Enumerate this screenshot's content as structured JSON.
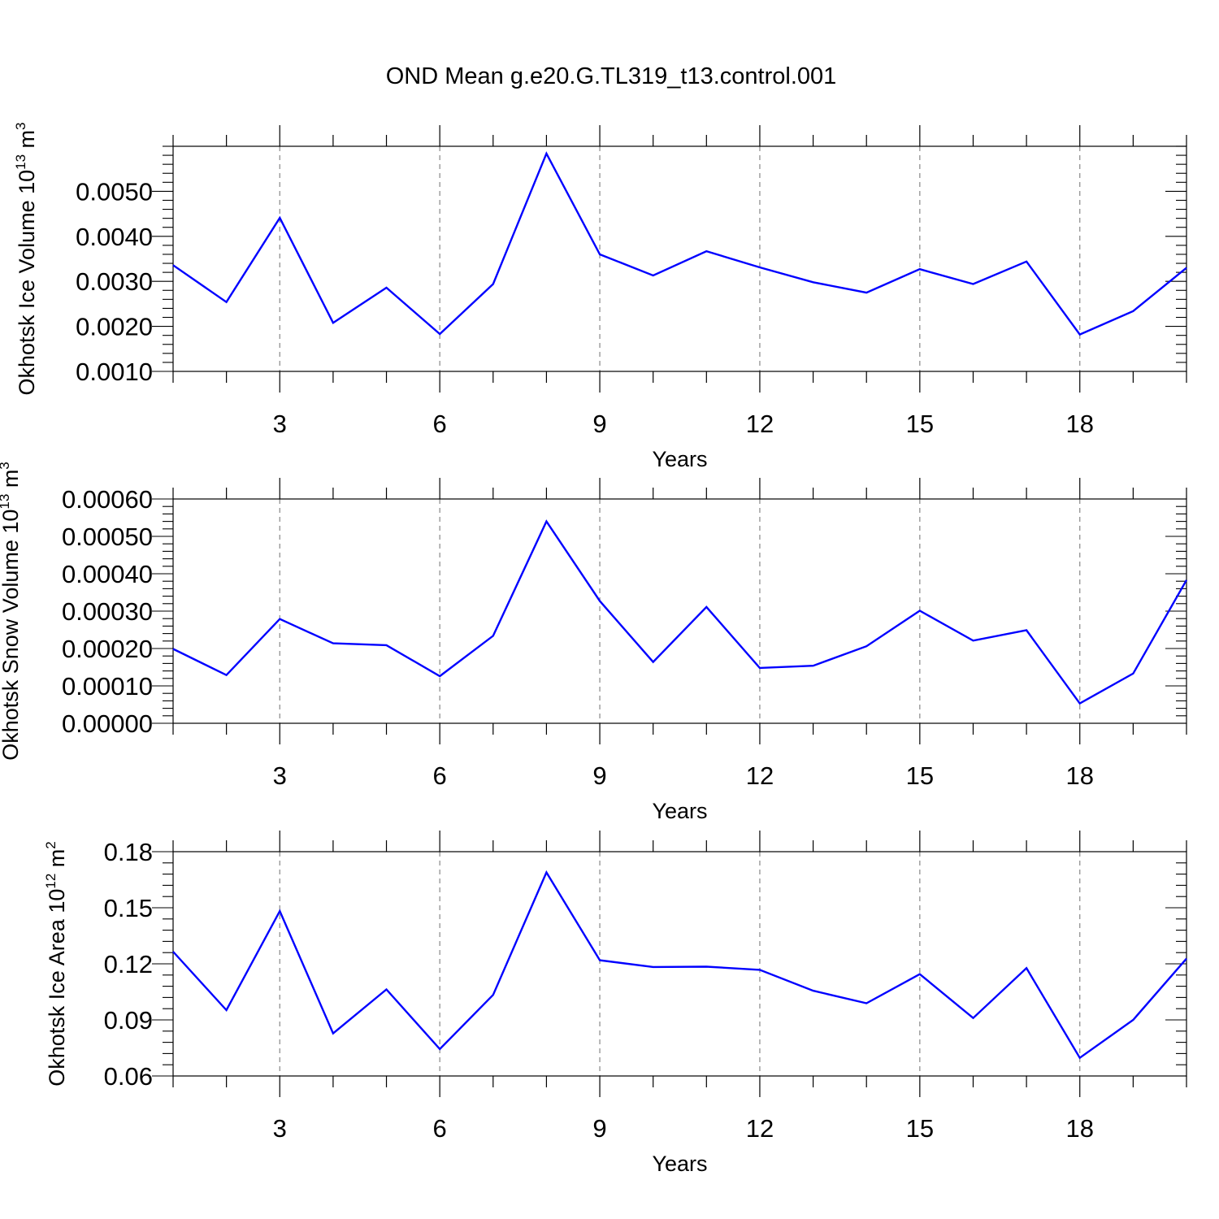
{
  "title": "OND Mean g.e20.G.TL319_t13.control.001",
  "line_color": "#0000ff",
  "chart_data": [
    {
      "type": "line",
      "ylabel": "Okhotsk Ice Volume 10",
      "ylabel_exp": "13",
      "ylabel_unit": "m",
      "ylabel_unit_exp": "3",
      "xlabel": "Years",
      "xlim": [
        1,
        20
      ],
      "ylim": [
        0.001,
        0.006
      ],
      "xticks": [
        3,
        6,
        9,
        12,
        15,
        18
      ],
      "xtick_labels": [
        "3",
        "6",
        "9",
        "12",
        "15",
        "18"
      ],
      "yticks": [
        0.001,
        0.002,
        0.003,
        0.004,
        0.005
      ],
      "ytick_labels": [
        "0.0010",
        "0.0020",
        "0.0030",
        "0.0040",
        "0.0050"
      ],
      "grid": "vertical dashed at major x ticks",
      "x": [
        1,
        2,
        3,
        4,
        5,
        6,
        7,
        8,
        9,
        10,
        11,
        12,
        13,
        14,
        15,
        16,
        17,
        18,
        19,
        20
      ],
      "values": [
        0.00336,
        0.00254,
        0.00441,
        0.00208,
        0.00286,
        0.00183,
        0.00294,
        0.00584,
        0.0036,
        0.00313,
        0.00367,
        0.00331,
        0.00298,
        0.00275,
        0.00327,
        0.00294,
        0.00344,
        0.00182,
        0.00234,
        0.0033
      ]
    },
    {
      "type": "line",
      "ylabel": "Okhotsk Snow Volume 10",
      "ylabel_exp": "13",
      "ylabel_unit": "m",
      "ylabel_unit_exp": "3",
      "xlabel": "Years",
      "xlim": [
        1,
        20
      ],
      "ylim": [
        0.0,
        0.0006
      ],
      "xticks": [
        3,
        6,
        9,
        12,
        15,
        18
      ],
      "xtick_labels": [
        "3",
        "6",
        "9",
        "12",
        "15",
        "18"
      ],
      "yticks": [
        0.0,
        0.0001,
        0.0002,
        0.0003,
        0.0004,
        0.0005,
        0.0006
      ],
      "ytick_labels": [
        "0.00000",
        "0.00010",
        "0.00020",
        "0.00030",
        "0.00040",
        "0.00050",
        "0.00060"
      ],
      "grid": "vertical dashed at major x ticks",
      "x": [
        1,
        2,
        3,
        4,
        5,
        6,
        7,
        8,
        9,
        10,
        11,
        12,
        13,
        14,
        15,
        16,
        17,
        18,
        19,
        20
      ],
      "values": [
        0.000199,
        0.000129,
        0.000279,
        0.000214,
        0.000209,
        0.000126,
        0.000234,
        0.00054,
        0.000327,
        0.000164,
        0.000311,
        0.000148,
        0.000154,
        0.000206,
        0.000301,
        0.000221,
        0.000249,
        5.3e-05,
        0.000133,
        0.000383
      ]
    },
    {
      "type": "line",
      "ylabel": "Okhotsk Ice Area 10",
      "ylabel_exp": "12",
      "ylabel_unit": "m",
      "ylabel_unit_exp": "2",
      "xlabel": "Years",
      "xlim": [
        1,
        20
      ],
      "ylim": [
        0.06,
        0.18
      ],
      "xticks": [
        3,
        6,
        9,
        12,
        15,
        18
      ],
      "xtick_labels": [
        "3",
        "6",
        "9",
        "12",
        "15",
        "18"
      ],
      "yticks": [
        0.06,
        0.09,
        0.12,
        0.15,
        0.18
      ],
      "ytick_labels": [
        "0.06",
        "0.09",
        "0.12",
        "0.15",
        "0.18"
      ],
      "grid": "vertical dashed at major x ticks",
      "x": [
        1,
        2,
        3,
        4,
        5,
        6,
        7,
        8,
        9,
        10,
        11,
        12,
        13,
        14,
        15,
        16,
        17,
        18,
        19,
        20
      ],
      "values": [
        0.1265,
        0.0952,
        0.1482,
        0.0828,
        0.1063,
        0.0744,
        0.1034,
        0.1689,
        0.1219,
        0.1183,
        0.1185,
        0.1168,
        0.1056,
        0.0989,
        0.1145,
        0.091,
        0.1177,
        0.0697,
        0.09,
        0.1228
      ]
    }
  ]
}
